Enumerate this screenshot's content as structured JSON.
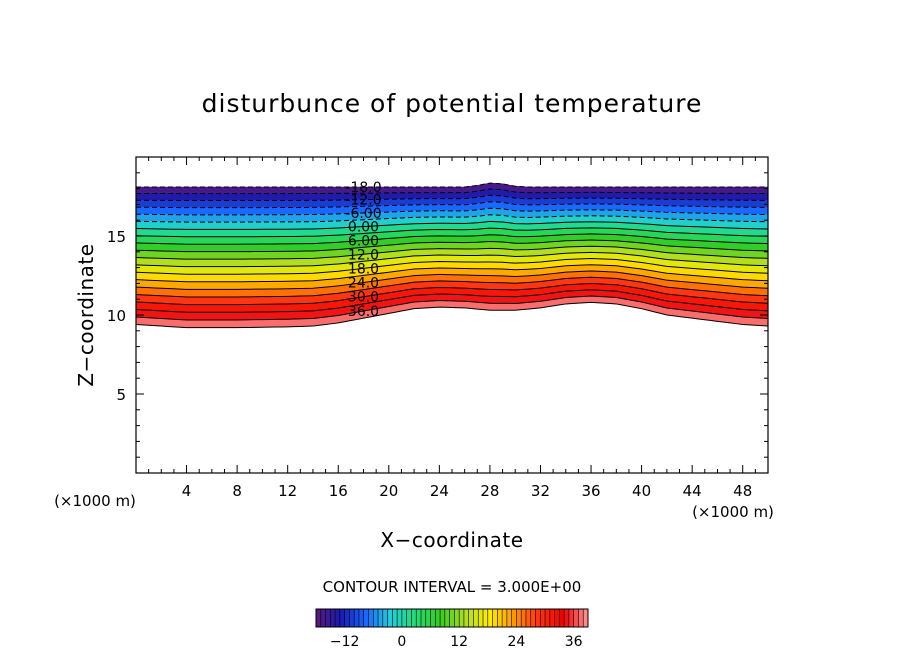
{
  "chart_data": {
    "type": "contour",
    "title": "disturbunce of potential temperature",
    "xlabel": "X−coordinate",
    "ylabel": "Z−coordinate",
    "x_unit": "(×1000 m)",
    "y_unit": "(×1000 m)",
    "xlim": [
      0,
      50
    ],
    "ylim": [
      0,
      20
    ],
    "x_ticks": [
      4,
      8,
      12,
      16,
      20,
      24,
      28,
      32,
      36,
      40,
      44,
      48
    ],
    "y_ticks": [
      5,
      10,
      15
    ],
    "x_tick_labels": [
      "4",
      "8",
      "12",
      "16",
      "20",
      "24",
      "28",
      "32",
      "36",
      "40",
      "44",
      "48"
    ],
    "y_tick_labels": [
      "5",
      "10",
      "15"
    ],
    "contour_interval_text": "CONTOUR INTERVAL = 3.000E+00",
    "contour_interval": 3.0,
    "level_range": [
      -18,
      39
    ],
    "contour_labels": [
      {
        "value": -18,
        "text": "-18.0"
      },
      {
        "value": -12,
        "text": "-12.0"
      },
      {
        "value": -6,
        "text": "-6.00"
      },
      {
        "value": 0,
        "text": "0.00"
      },
      {
        "value": 6,
        "text": "6.00"
      },
      {
        "value": 12,
        "text": "12.0"
      },
      {
        "value": 18,
        "text": "18.0"
      },
      {
        "value": 24,
        "text": "24.0"
      },
      {
        "value": 30,
        "text": "30.0"
      },
      {
        "value": 36,
        "text": "36.0"
      }
    ],
    "field_bottom_z": [
      {
        "x": 0,
        "z": 9.4
      },
      {
        "x": 4,
        "z": 9.2
      },
      {
        "x": 8,
        "z": 9.2
      },
      {
        "x": 12,
        "z": 9.25
      },
      {
        "x": 14,
        "z": 9.3
      },
      {
        "x": 16,
        "z": 9.5
      },
      {
        "x": 18,
        "z": 9.8
      },
      {
        "x": 20,
        "z": 10.1
      },
      {
        "x": 22,
        "z": 10.4
      },
      {
        "x": 24,
        "z": 10.5
      },
      {
        "x": 26,
        "z": 10.45
      },
      {
        "x": 28,
        "z": 10.3
      },
      {
        "x": 30,
        "z": 10.3
      },
      {
        "x": 32,
        "z": 10.45
      },
      {
        "x": 34,
        "z": 10.7
      },
      {
        "x": 36,
        "z": 10.8
      },
      {
        "x": 38,
        "z": 10.7
      },
      {
        "x": 40,
        "z": 10.4
      },
      {
        "x": 42,
        "z": 10.0
      },
      {
        "x": 44,
        "z": 9.8
      },
      {
        "x": 46,
        "z": 9.6
      },
      {
        "x": 48,
        "z": 9.4
      },
      {
        "x": 50,
        "z": 9.3
      }
    ],
    "field_top_z": [
      {
        "x": 0,
        "z": 18.1
      },
      {
        "x": 26,
        "z": 18.1
      },
      {
        "x": 27,
        "z": 18.2
      },
      {
        "x": 28,
        "z": 18.35
      },
      {
        "x": 29,
        "z": 18.3
      },
      {
        "x": 30,
        "z": 18.15
      },
      {
        "x": 31,
        "z": 18.1
      },
      {
        "x": 50,
        "z": 18.1
      }
    ],
    "colorbar": {
      "tick_labels": [
        "−12",
        "0",
        "12",
        "24",
        "36"
      ],
      "tick_values": [
        -12,
        0,
        12,
        24,
        36
      ],
      "range": [
        -18,
        39
      ]
    },
    "colormap": [
      "#5a1a7a",
      "#1a1ab0",
      "#1a66ff",
      "#22ccdd",
      "#22dd77",
      "#33cc22",
      "#aadd22",
      "#ffee00",
      "#ff9900",
      "#ff3311",
      "#ee0000",
      "#ff9999"
    ],
    "grid": false
  }
}
